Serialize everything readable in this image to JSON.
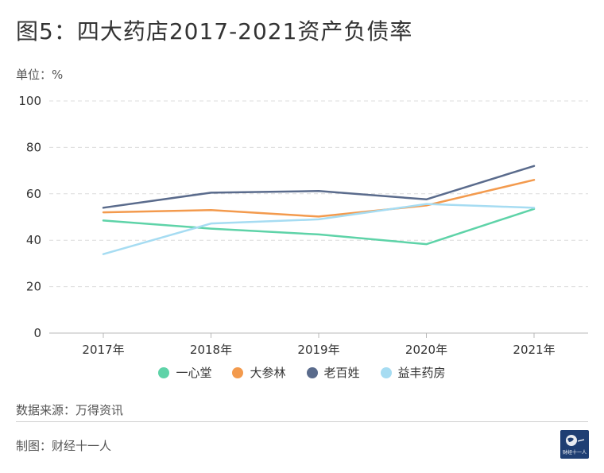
{
  "title": "图5：四大药店2017-2021资产负债率",
  "unit_label": "单位：%",
  "source": "数据来源：万得资讯",
  "maker": "制图：财经十一人",
  "logo_text": "财经十一人",
  "chart_data": {
    "type": "line",
    "x": [
      "2017年",
      "2018年",
      "2019年",
      "2020年",
      "2021年"
    ],
    "ylim": [
      0,
      100
    ],
    "yticks": [
      "0",
      "20",
      "40",
      "60",
      "80",
      "100"
    ],
    "grid": true,
    "legend_position": "bottom",
    "series": [
      {
        "name": "一心堂",
        "color": "#5ed3a8",
        "values": [
          48.5,
          45,
          42.5,
          38.3,
          53.5
        ]
      },
      {
        "name": "大参林",
        "color": "#f39a4d",
        "values": [
          52,
          53,
          50.2,
          55,
          66
        ]
      },
      {
        "name": "老百姓",
        "color": "#5a6b8c",
        "values": [
          54,
          60.5,
          61.2,
          57.6,
          72
        ]
      },
      {
        "name": "益丰药房",
        "color": "#a6dcf2",
        "values": [
          34,
          47.2,
          49,
          55.6,
          54
        ]
      }
    ]
  }
}
